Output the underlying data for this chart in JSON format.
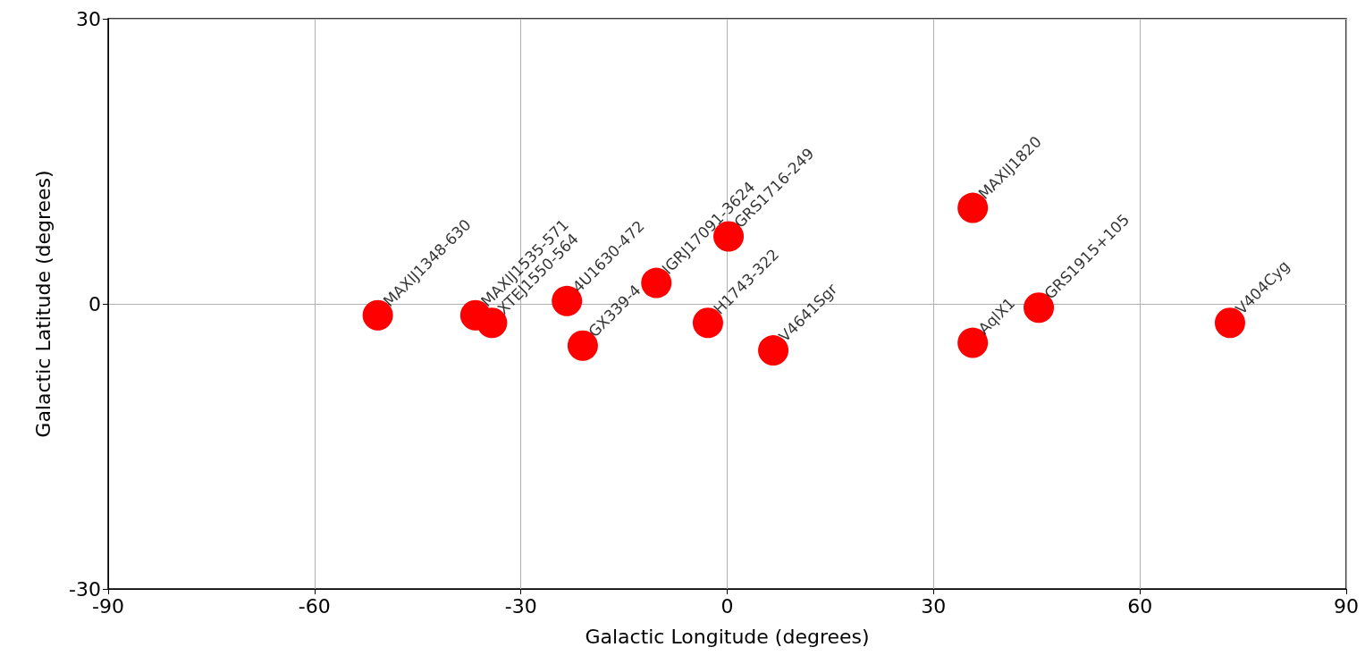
{
  "chart_data": {
    "type": "scatter",
    "xlabel": "Galactic Longitude (degrees)",
    "ylabel": "Galactic Latitude (degrees)",
    "x": [
      -50.8,
      -36.6,
      -34.2,
      -23.3,
      -21.0,
      -10.3,
      -2.8,
      0.2,
      6.7,
      35.7,
      35.7,
      45.3,
      73.1
    ],
    "series": [
      {
        "color": "#ff0000",
        "values": [
          -1.2,
          -1.2,
          -2.0,
          0.3,
          -4.4,
          2.2,
          -2.0,
          7.1,
          -4.9,
          10.1,
          -4.1,
          -0.4,
          -2.0
        ]
      }
    ],
    "annotations": [
      {
        "text": "MAXIJ1348-630",
        "x": -50.8,
        "y": -1.2
      },
      {
        "text": "MAXIJ1535-571",
        "x": -36.6,
        "y": -1.2
      },
      {
        "text": "XTEJ1550-564",
        "x": -34.2,
        "y": -2.0
      },
      {
        "text": "4U1630-472",
        "x": -23.3,
        "y": 0.3
      },
      {
        "text": "GX339-4",
        "x": -21.0,
        "y": -4.4
      },
      {
        "text": "IGRJ17091-3624",
        "x": -10.3,
        "y": 2.2
      },
      {
        "text": "H1743-322",
        "x": -2.8,
        "y": -2.0
      },
      {
        "text": "GRS1716-249",
        "x": 0.2,
        "y": 7.1
      },
      {
        "text": "V4641Sgr",
        "x": 6.7,
        "y": -4.9
      },
      {
        "text": "MAXIJ1820",
        "x": 35.7,
        "y": 10.1
      },
      {
        "text": "AqlX1",
        "x": 35.7,
        "y": -4.1
      },
      {
        "text": "GRS1915+105",
        "x": 45.3,
        "y": -0.4
      },
      {
        "text": "V404Cyg",
        "x": 73.1,
        "y": -2.0
      }
    ],
    "xlim": [
      -90,
      90
    ],
    "xticks": [
      -90,
      -60,
      -30,
      0,
      30,
      60,
      90
    ],
    "ylim": [
      -30,
      30
    ],
    "yticks": [
      -30,
      0,
      30
    ],
    "grid": true,
    "marker": "circle"
  }
}
